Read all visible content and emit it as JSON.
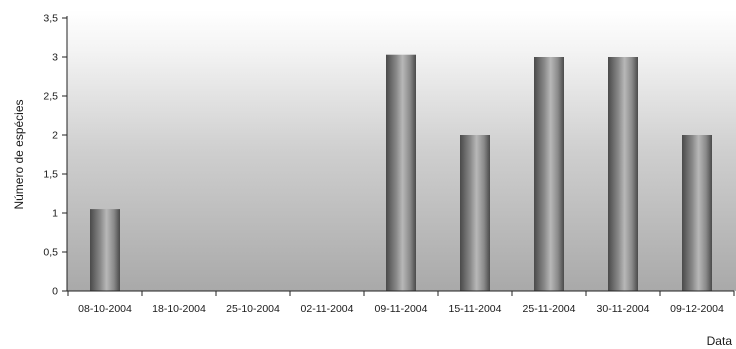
{
  "chart_data": {
    "type": "bar",
    "title": "",
    "xlabel": "Data",
    "ylabel": "Número de espécies",
    "ylim": [
      0,
      3.5
    ],
    "yticks": [
      "0",
      "0,5",
      "1",
      "1,5",
      "2",
      "2,5",
      "3",
      "3,5"
    ],
    "categories": [
      "08-10-2004",
      "18-10-2004",
      "25-10-2004",
      "02-11-2004",
      "09-11-2004",
      "15-11-2004",
      "25-11-2004",
      "30-11-2004",
      "09-12-2004"
    ],
    "values": [
      1.05,
      0,
      0,
      0,
      3.03,
      2,
      3,
      3,
      2
    ],
    "colors": {
      "bar_dark": "#4a4a4a",
      "bar_mid": "#8a8a8a",
      "bar_light": "#b8b8b8",
      "plot_top": "#ffffff",
      "plot_bottom": "#a9a9a9",
      "axis": "#222222"
    }
  }
}
